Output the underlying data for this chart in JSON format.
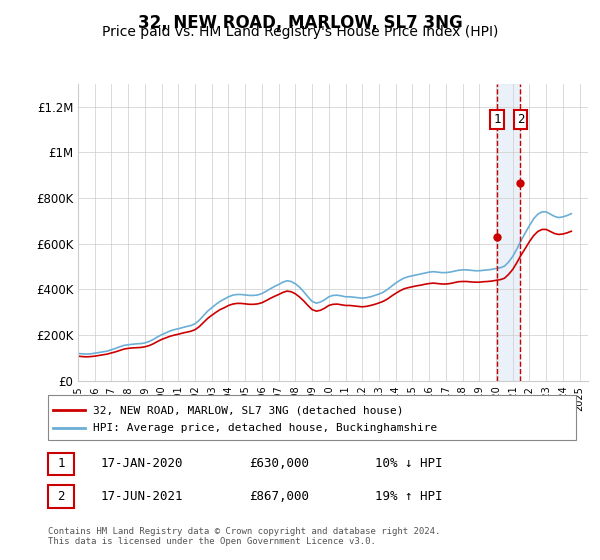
{
  "title": "32, NEW ROAD, MARLOW, SL7 3NG",
  "subtitle": "Price paid vs. HM Land Registry's House Price Index (HPI)",
  "title_fontsize": 12,
  "subtitle_fontsize": 10,
  "ylabel_ticks": [
    "£0",
    "£200K",
    "£400K",
    "£600K",
    "£800K",
    "£1M",
    "£1.2M"
  ],
  "ytick_values": [
    0,
    200000,
    400000,
    600000,
    800000,
    1000000,
    1200000
  ],
  "ylim": [
    0,
    1300000
  ],
  "xlim_start": 1995.0,
  "xlim_end": 2025.5,
  "hpi_color": "#6baed6",
  "price_color": "#cc0000",
  "marker1_date": 2020.05,
  "marker2_date": 2021.46,
  "marker1_price": 630000,
  "marker2_price": 867000,
  "legend_label_red": "32, NEW ROAD, MARLOW, SL7 3NG (detached house)",
  "legend_label_blue": "HPI: Average price, detached house, Buckinghamshire",
  "table_row1": [
    "1",
    "17-JAN-2020",
    "£630,000",
    "10% ↓ HPI"
  ],
  "table_row2": [
    "2",
    "17-JUN-2021",
    "£867,000",
    "19% ↑ HPI"
  ],
  "footer": "Contains HM Land Registry data © Crown copyright and database right 2024.\nThis data is licensed under the Open Government Licence v3.0.",
  "background_shade_color": "#dce9f5",
  "grid_color": "#cccccc",
  "hpi_data_x": [
    1995.0,
    1995.25,
    1995.5,
    1995.75,
    1996.0,
    1996.25,
    1996.5,
    1996.75,
    1997.0,
    1997.25,
    1997.5,
    1997.75,
    1998.0,
    1998.25,
    1998.5,
    1998.75,
    1999.0,
    1999.25,
    1999.5,
    1999.75,
    2000.0,
    2000.25,
    2000.5,
    2000.75,
    2001.0,
    2001.25,
    2001.5,
    2001.75,
    2002.0,
    2002.25,
    2002.5,
    2002.75,
    2003.0,
    2003.25,
    2003.5,
    2003.75,
    2004.0,
    2004.25,
    2004.5,
    2004.75,
    2005.0,
    2005.25,
    2005.5,
    2005.75,
    2006.0,
    2006.25,
    2006.5,
    2006.75,
    2007.0,
    2007.25,
    2007.5,
    2007.75,
    2008.0,
    2008.25,
    2008.5,
    2008.75,
    2009.0,
    2009.25,
    2009.5,
    2009.75,
    2010.0,
    2010.25,
    2010.5,
    2010.75,
    2011.0,
    2011.25,
    2011.5,
    2011.75,
    2012.0,
    2012.25,
    2012.5,
    2012.75,
    2013.0,
    2013.25,
    2013.5,
    2013.75,
    2014.0,
    2014.25,
    2014.5,
    2014.75,
    2015.0,
    2015.25,
    2015.5,
    2015.75,
    2016.0,
    2016.25,
    2016.5,
    2016.75,
    2017.0,
    2017.25,
    2017.5,
    2017.75,
    2018.0,
    2018.25,
    2018.5,
    2018.75,
    2019.0,
    2019.25,
    2019.5,
    2019.75,
    2020.0,
    2020.25,
    2020.5,
    2020.75,
    2021.0,
    2021.25,
    2021.5,
    2021.75,
    2022.0,
    2022.25,
    2022.5,
    2022.75,
    2023.0,
    2023.25,
    2023.5,
    2023.75,
    2024.0,
    2024.25,
    2024.5
  ],
  "hpi_data_y": [
    120000,
    118000,
    117000,
    118000,
    121000,
    124000,
    127000,
    130000,
    136000,
    142000,
    149000,
    155000,
    158000,
    160000,
    162000,
    163000,
    166000,
    172000,
    181000,
    192000,
    202000,
    210000,
    218000,
    224000,
    228000,
    233000,
    238000,
    242000,
    250000,
    265000,
    285000,
    305000,
    320000,
    335000,
    348000,
    358000,
    368000,
    375000,
    378000,
    378000,
    376000,
    374000,
    374000,
    376000,
    382000,
    392000,
    403000,
    413000,
    422000,
    432000,
    438000,
    435000,
    425000,
    410000,
    390000,
    368000,
    348000,
    340000,
    345000,
    355000,
    368000,
    374000,
    375000,
    372000,
    368000,
    368000,
    366000,
    364000,
    362000,
    364000,
    368000,
    374000,
    380000,
    388000,
    400000,
    414000,
    428000,
    440000,
    450000,
    456000,
    460000,
    464000,
    468000,
    472000,
    476000,
    478000,
    476000,
    474000,
    474000,
    476000,
    480000,
    484000,
    486000,
    486000,
    484000,
    482000,
    482000,
    484000,
    486000,
    488000,
    492000,
    495000,
    502000,
    520000,
    545000,
    578000,
    615000,
    648000,
    680000,
    710000,
    730000,
    740000,
    740000,
    730000,
    720000,
    715000,
    718000,
    724000,
    732000
  ],
  "price_data_x": [
    1995.0,
    1995.25,
    1995.5,
    1995.75,
    1996.0,
    1996.25,
    1996.5,
    1996.75,
    1997.0,
    1997.25,
    1997.5,
    1997.75,
    1998.0,
    1998.25,
    1998.5,
    1998.75,
    1999.0,
    1999.25,
    1999.5,
    1999.75,
    2000.0,
    2000.25,
    2000.5,
    2000.75,
    2001.0,
    2001.25,
    2001.5,
    2001.75,
    2002.0,
    2002.25,
    2002.5,
    2002.75,
    2003.0,
    2003.25,
    2003.5,
    2003.75,
    2004.0,
    2004.25,
    2004.5,
    2004.75,
    2005.0,
    2005.25,
    2005.5,
    2005.75,
    2006.0,
    2006.25,
    2006.5,
    2006.75,
    2007.0,
    2007.25,
    2007.5,
    2007.75,
    2008.0,
    2008.25,
    2008.5,
    2008.75,
    2009.0,
    2009.25,
    2009.5,
    2009.75,
    2010.0,
    2010.25,
    2010.5,
    2010.75,
    2011.0,
    2011.25,
    2011.5,
    2011.75,
    2012.0,
    2012.25,
    2012.5,
    2012.75,
    2013.0,
    2013.25,
    2013.5,
    2013.75,
    2014.0,
    2014.25,
    2014.5,
    2014.75,
    2015.0,
    2015.25,
    2015.5,
    2015.75,
    2016.0,
    2016.25,
    2016.5,
    2016.75,
    2017.0,
    2017.25,
    2017.5,
    2017.75,
    2018.0,
    2018.25,
    2018.5,
    2018.75,
    2019.0,
    2019.25,
    2019.5,
    2019.75,
    2020.0,
    2020.25,
    2020.5,
    2020.75,
    2021.0,
    2021.25,
    2021.5,
    2021.75,
    2022.0,
    2022.25,
    2022.5,
    2022.75,
    2023.0,
    2023.25,
    2023.5,
    2023.75,
    2024.0,
    2024.25,
    2024.5
  ],
  "price_data_y": [
    108000,
    106000,
    105000,
    106000,
    108000,
    111000,
    114000,
    117000,
    122000,
    127000,
    133000,
    139000,
    142000,
    144000,
    145000,
    146000,
    149000,
    154000,
    162000,
    172000,
    181000,
    188000,
    195000,
    200000,
    204000,
    209000,
    213000,
    217000,
    224000,
    237000,
    255000,
    273000,
    287000,
    300000,
    312000,
    320000,
    330000,
    336000,
    339000,
    339000,
    337000,
    335000,
    335000,
    337000,
    342000,
    351000,
    361000,
    370000,
    378000,
    387000,
    393000,
    390000,
    381000,
    367000,
    350000,
    330000,
    312000,
    305000,
    309000,
    318000,
    330000,
    335000,
    336000,
    333000,
    330000,
    330000,
    328000,
    326000,
    324000,
    326000,
    330000,
    335000,
    341000,
    348000,
    358000,
    371000,
    383000,
    394000,
    403000,
    408000,
    412000,
    416000,
    419000,
    423000,
    426000,
    428000,
    426000,
    424000,
    424000,
    426000,
    430000,
    434000,
    435000,
    435000,
    433000,
    432000,
    432000,
    434000,
    435000,
    437000,
    440000,
    443000,
    449000,
    466000,
    488000,
    518000,
    551000,
    580000,
    610000,
    636000,
    654000,
    663000,
    663000,
    654000,
    645000,
    641000,
    643000,
    648000,
    655000
  ]
}
